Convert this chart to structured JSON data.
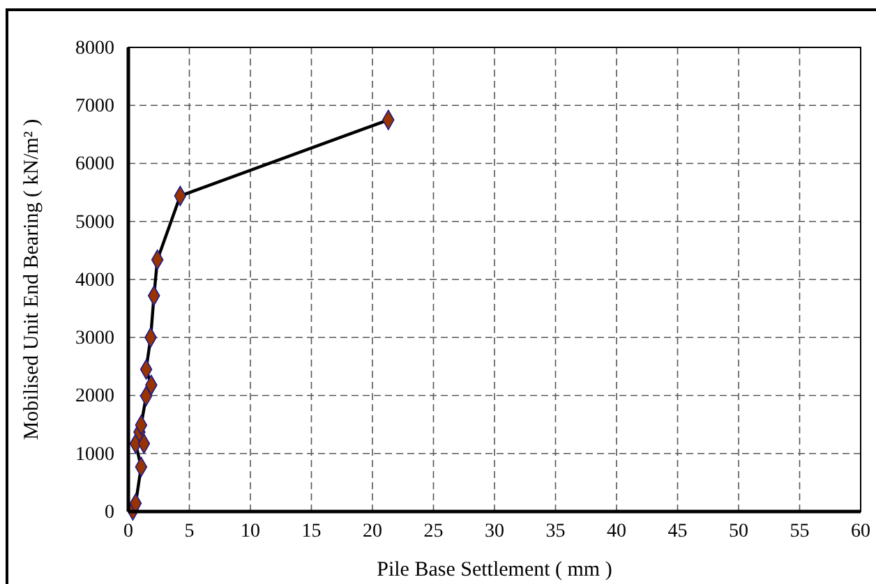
{
  "chart_data": {
    "type": "line",
    "xlabel": "Pile Base Settlement ( mm )",
    "ylabel": "Mobilised Unit End Bearing ( kN/m² )",
    "x": [
      0.37,
      0.6,
      1.05,
      0.6,
      1.28,
      0.91,
      1.05,
      1.46,
      1.88,
      1.46,
      1.83,
      2.1,
      2.38,
      4.25,
      21.3
    ],
    "series": [
      {
        "color": "#000000",
        "values": [
          20,
          140,
          770,
          1170,
          1170,
          1370,
          1490,
          1990,
          2180,
          2450,
          3000,
          3720,
          4340,
          5440,
          6750
        ]
      }
    ],
    "xlim": [
      0,
      60
    ],
    "xticks": [
      0,
      5,
      10,
      15,
      20,
      25,
      30,
      35,
      40,
      45,
      50,
      55,
      60
    ],
    "ylim": [
      0,
      8000
    ],
    "yticks": [
      0,
      1000,
      2000,
      3000,
      4000,
      5000,
      6000,
      7000,
      8000
    ],
    "grid": true,
    "marker": "diamond",
    "line_style": "solid"
  }
}
